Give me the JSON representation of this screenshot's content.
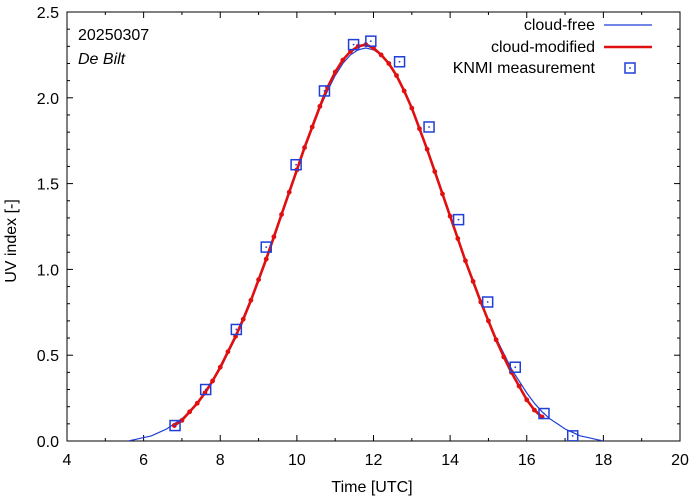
{
  "chart_data": {
    "type": "line",
    "annotation_date": "20250307",
    "annotation_location": "De Bilt",
    "xlabel": "Time  [UTC]",
    "ylabel": "UV index  [-]",
    "xlim": [
      4,
      20
    ],
    "ylim": [
      0,
      2.5
    ],
    "xticks": [
      4,
      6,
      8,
      10,
      12,
      14,
      16,
      18,
      20
    ],
    "xtick_labels": [
      "4",
      "6",
      "8",
      "10",
      "12",
      "14",
      "16",
      "18",
      "20"
    ],
    "yticks": [
      0,
      0.5,
      1.0,
      1.5,
      2.0,
      2.5
    ],
    "ytick_labels": [
      "0.0",
      "0.5",
      "1.0",
      "1.5",
      "2.0",
      "2.5"
    ],
    "legend_position": "top-right",
    "colors": {
      "cloud_free": "#1f3fd6",
      "cloud_modified": "#e01010",
      "knmi": "#1f3fd6"
    },
    "series": [
      {
        "name": "cloud-free",
        "style": "thin-line",
        "x": [
          5.6,
          5.8,
          6.0,
          6.2,
          6.4,
          6.6,
          6.8,
          7.0,
          7.2,
          7.4,
          7.6,
          7.8,
          8.0,
          8.2,
          8.4,
          8.6,
          8.8,
          9.0,
          9.2,
          9.4,
          9.6,
          9.8,
          10.0,
          10.2,
          10.4,
          10.6,
          10.8,
          11.0,
          11.2,
          11.4,
          11.6,
          11.8,
          12.0,
          12.2,
          12.4,
          12.6,
          12.8,
          13.0,
          13.2,
          13.4,
          13.6,
          13.8,
          14.0,
          14.2,
          14.4,
          14.6,
          14.8,
          15.0,
          15.2,
          15.4,
          15.6,
          15.8,
          16.0,
          16.2,
          16.4,
          16.6,
          16.8,
          17.0,
          17.2,
          17.4,
          17.6,
          17.8,
          18.0
        ],
        "values": [
          0.0,
          0.01,
          0.02,
          0.03,
          0.05,
          0.07,
          0.1,
          0.13,
          0.17,
          0.22,
          0.28,
          0.35,
          0.42,
          0.51,
          0.6,
          0.7,
          0.81,
          0.93,
          1.05,
          1.18,
          1.31,
          1.44,
          1.57,
          1.7,
          1.82,
          1.94,
          2.04,
          2.13,
          2.2,
          2.25,
          2.28,
          2.29,
          2.28,
          2.25,
          2.2,
          2.13,
          2.04,
          1.94,
          1.82,
          1.7,
          1.57,
          1.44,
          1.31,
          1.18,
          1.05,
          0.93,
          0.81,
          0.7,
          0.6,
          0.51,
          0.42,
          0.35,
          0.28,
          0.22,
          0.17,
          0.13,
          0.1,
          0.07,
          0.05,
          0.03,
          0.02,
          0.01,
          0.0
        ]
      },
      {
        "name": "cloud-modified",
        "style": "thick-line-with-dots",
        "x": [
          6.8,
          7.0,
          7.2,
          7.4,
          7.6,
          7.8,
          8.0,
          8.2,
          8.4,
          8.6,
          8.8,
          9.0,
          9.2,
          9.4,
          9.6,
          9.8,
          10.0,
          10.2,
          10.4,
          10.6,
          10.8,
          11.0,
          11.2,
          11.4,
          11.6,
          11.8,
          12.0,
          12.2,
          12.4,
          12.6,
          12.8,
          13.0,
          13.2,
          13.4,
          13.6,
          13.8,
          14.0,
          14.2,
          14.4,
          14.6,
          14.8,
          15.0,
          15.2,
          15.4,
          15.6,
          15.8,
          16.0,
          16.2,
          16.4
        ],
        "values": [
          0.09,
          0.12,
          0.17,
          0.22,
          0.28,
          0.35,
          0.43,
          0.52,
          0.61,
          0.71,
          0.82,
          0.94,
          1.06,
          1.19,
          1.32,
          1.45,
          1.58,
          1.71,
          1.83,
          1.95,
          2.06,
          2.15,
          2.22,
          2.27,
          2.3,
          2.31,
          2.29,
          2.25,
          2.2,
          2.13,
          2.04,
          1.94,
          1.82,
          1.7,
          1.57,
          1.44,
          1.31,
          1.18,
          1.05,
          0.93,
          0.81,
          0.7,
          0.59,
          0.49,
          0.4,
          0.32,
          0.24,
          0.18,
          0.14
        ]
      },
      {
        "name": "KNMI measurement",
        "style": "open-square",
        "x": [
          6.82,
          7.62,
          8.42,
          9.2,
          9.98,
          10.72,
          11.48,
          11.93,
          12.68,
          13.45,
          14.22,
          14.98,
          15.7,
          16.45,
          17.2
        ],
        "values": [
          0.09,
          0.3,
          0.65,
          1.13,
          1.61,
          2.04,
          2.31,
          2.33,
          2.21,
          1.83,
          1.29,
          0.81,
          0.43,
          0.16,
          0.03
        ]
      }
    ]
  }
}
